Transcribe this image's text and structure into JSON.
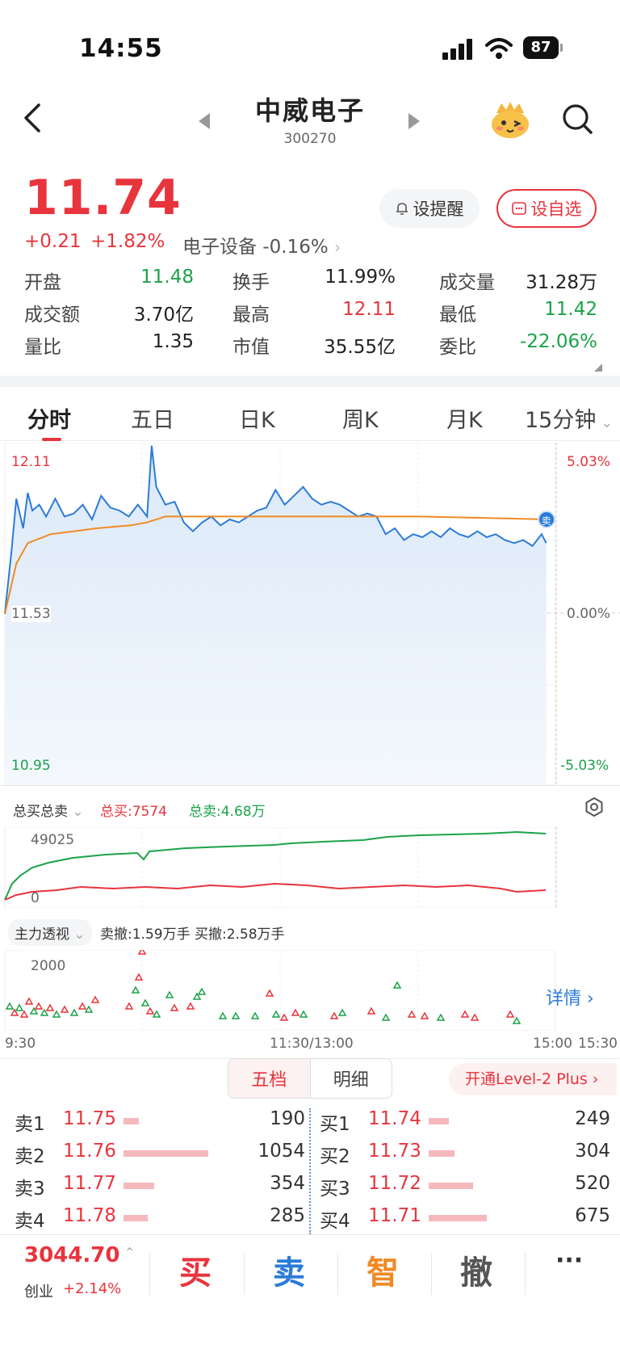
{
  "status": {
    "time": "14:55",
    "battery": "87"
  },
  "header": {
    "title": "中威电子",
    "code": "300270"
  },
  "quote": {
    "price": "11.74",
    "change": "+0.21",
    "change_pct": "+1.82%",
    "sector": "电子设备 -0.16%",
    "alert_label": "设提醒",
    "fav_label": "设自选"
  },
  "stats": [
    [
      {
        "label": "开盘",
        "value": "11.48",
        "color": "green"
      },
      {
        "label": "换手",
        "value": "11.99%",
        "color": "black"
      },
      {
        "label": "成交量",
        "value": "31.28万",
        "color": "black"
      }
    ],
    [
      {
        "label": "成交额",
        "value": "3.70亿",
        "color": "black"
      },
      {
        "label": "最高",
        "value": "12.11",
        "color": "red"
      },
      {
        "label": "最低",
        "value": "11.42",
        "color": "green"
      }
    ],
    [
      {
        "label": "量比",
        "value": "1.35",
        "color": "black"
      },
      {
        "label": "市值",
        "value": "35.55亿",
        "color": "black"
      },
      {
        "label": "委比",
        "value": "-22.06%",
        "color": "green"
      }
    ]
  ],
  "tabs": [
    "分时",
    "五日",
    "日K",
    "周K",
    "月K",
    "15分钟"
  ],
  "chart": {
    "y_high": "12.11",
    "y_mid": "11.53",
    "y_low": "10.95",
    "pct_high": "5.03%",
    "pct_mid": "0.00%",
    "pct_low": "-5.03%",
    "marker": "卖"
  },
  "chart_data": {
    "type": "line",
    "x_domain": [
      0,
      240
    ],
    "ylim": [
      10.95,
      12.11
    ],
    "series": [
      {
        "color": "#2b7bd8",
        "points": [
          [
            0,
            11.53
          ],
          [
            3,
            11.75
          ],
          [
            5,
            11.92
          ],
          [
            8,
            11.82
          ],
          [
            10,
            11.94
          ],
          [
            12,
            11.88
          ],
          [
            15,
            11.9
          ],
          [
            18,
            11.86
          ],
          [
            22,
            11.92
          ],
          [
            26,
            11.86
          ],
          [
            30,
            11.87
          ],
          [
            34,
            11.9
          ],
          [
            38,
            11.85
          ],
          [
            42,
            11.93
          ],
          [
            46,
            11.89
          ],
          [
            50,
            11.88
          ],
          [
            54,
            11.86
          ],
          [
            58,
            11.9
          ],
          [
            62,
            11.86
          ],
          [
            64,
            12.1
          ],
          [
            66,
            11.96
          ],
          [
            70,
            11.9
          ],
          [
            74,
            11.91
          ],
          [
            78,
            11.84
          ],
          [
            82,
            11.81
          ],
          [
            86,
            11.84
          ],
          [
            90,
            11.86
          ],
          [
            94,
            11.83
          ],
          [
            98,
            11.85
          ],
          [
            102,
            11.84
          ],
          [
            106,
            11.86
          ],
          [
            110,
            11.88
          ],
          [
            114,
            11.89
          ],
          [
            118,
            11.95
          ],
          [
            122,
            11.9
          ],
          [
            126,
            11.93
          ],
          [
            130,
            11.96
          ],
          [
            134,
            11.92
          ],
          [
            138,
            11.9
          ],
          [
            142,
            11.91
          ],
          [
            146,
            11.9
          ],
          [
            150,
            11.88
          ],
          [
            154,
            11.86
          ],
          [
            158,
            11.87
          ],
          [
            162,
            11.86
          ],
          [
            166,
            11.8
          ],
          [
            170,
            11.82
          ],
          [
            174,
            11.78
          ],
          [
            178,
            11.8
          ],
          [
            182,
            11.79
          ],
          [
            186,
            11.81
          ],
          [
            190,
            11.79
          ],
          [
            194,
            11.82
          ],
          [
            198,
            11.8
          ],
          [
            202,
            11.79
          ],
          [
            206,
            11.81
          ],
          [
            210,
            11.79
          ],
          [
            214,
            11.8
          ],
          [
            218,
            11.78
          ],
          [
            222,
            11.77
          ],
          [
            226,
            11.78
          ],
          [
            230,
            11.76
          ],
          [
            234,
            11.8
          ],
          [
            236,
            11.77
          ]
        ]
      },
      {
        "color": "#f08a24",
        "points": [
          [
            0,
            11.53
          ],
          [
            5,
            11.7
          ],
          [
            10,
            11.77
          ],
          [
            20,
            11.8
          ],
          [
            30,
            11.81
          ],
          [
            40,
            11.82
          ],
          [
            55,
            11.83
          ],
          [
            62,
            11.84
          ],
          [
            70,
            11.86
          ],
          [
            100,
            11.86
          ],
          [
            140,
            11.86
          ],
          [
            180,
            11.86
          ],
          [
            210,
            11.855
          ],
          [
            236,
            11.85
          ]
        ]
      }
    ]
  },
  "flow": {
    "title": "总买总卖",
    "buy": "总买:7574",
    "sell": "总卖:4.68万",
    "max": "49025",
    "min": "0"
  },
  "main": {
    "title": "主力透视",
    "info": "卖撤:1.59万手 买撤:2.58万手",
    "max": "2000",
    "detail": "详情"
  },
  "times": [
    "9:30",
    "11:30/13:00",
    "15:00",
    "15:30"
  ],
  "book_tabs": [
    "五档",
    "明细"
  ],
  "level2": "开通Level-2 Plus",
  "asks": [
    {
      "label": "卖1",
      "price": "11.75",
      "vol": "190",
      "bar": 0.1
    },
    {
      "label": "卖2",
      "price": "11.76",
      "vol": "1054",
      "bar": 0.55
    },
    {
      "label": "卖3",
      "price": "11.77",
      "vol": "354",
      "bar": 0.2
    },
    {
      "label": "卖4",
      "price": "11.78",
      "vol": "285",
      "bar": 0.16
    }
  ],
  "bids": [
    {
      "label": "买1",
      "price": "11.74",
      "vol": "249",
      "bar": 0.13
    },
    {
      "label": "买2",
      "price": "11.73",
      "vol": "304",
      "bar": 0.17
    },
    {
      "label": "买3",
      "price": "11.72",
      "vol": "520",
      "bar": 0.29
    },
    {
      "label": "买4",
      "price": "11.71",
      "vol": "675",
      "bar": 0.38
    }
  ],
  "bottom": {
    "index": "3044.70",
    "index_name": "创业",
    "index_chg": "+2.14%",
    "buy": "买",
    "sell": "卖",
    "smart": "智",
    "cancel": "撤",
    "more": "···"
  }
}
